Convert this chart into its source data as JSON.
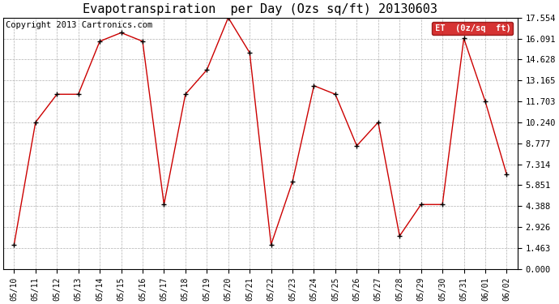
{
  "title": "Evapotranspiration  per Day (Ozs sq/ft) 20130603",
  "copyright": "Copyright 2013 Cartronics.com",
  "legend_label": "ET  (0z/sq  ft)",
  "dates": [
    "05/10",
    "05/11",
    "05/12",
    "05/13",
    "05/14",
    "05/15",
    "05/16",
    "05/17",
    "05/18",
    "05/19",
    "05/20",
    "05/21",
    "05/22",
    "05/23",
    "05/24",
    "05/25",
    "05/26",
    "05/27",
    "05/28",
    "05/29",
    "05/30",
    "05/31",
    "06/01",
    "06/02"
  ],
  "values": [
    1.7,
    10.24,
    12.2,
    12.2,
    15.9,
    16.5,
    15.9,
    4.5,
    12.2,
    13.9,
    17.554,
    15.1,
    1.7,
    6.1,
    12.8,
    12.2,
    8.6,
    10.24,
    2.3,
    4.5,
    4.5,
    16.1,
    11.7,
    6.6
  ],
  "yticks": [
    0.0,
    1.463,
    2.926,
    4.388,
    5.851,
    7.314,
    8.777,
    10.24,
    11.703,
    13.165,
    14.628,
    16.091,
    17.554
  ],
  "ymin": 0.0,
  "ymax": 17.554,
  "line_color": "#cc0000",
  "marker_color": "#000000",
  "bg_color": "#ffffff",
  "grid_color": "#b0b0b0",
  "legend_bg": "#cc0000",
  "legend_text_color": "#ffffff",
  "title_fontsize": 11,
  "copyright_fontsize": 7.5,
  "tick_fontsize": 7,
  "ytick_fontsize": 7.5
}
